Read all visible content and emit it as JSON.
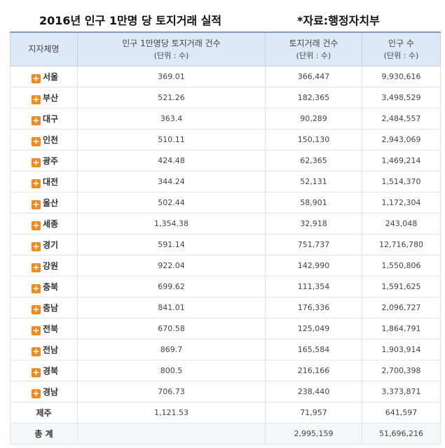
{
  "header": {
    "title": "2016년 인구 1만명 당 토지거래 실적",
    "source": "*자료:행정자치부"
  },
  "columns": {
    "region": "지자체명",
    "per_10k": "인구 1만명당 토지거래 건수",
    "per_10k_unit": "(단위 : 수)",
    "transactions": "토지거래 건수",
    "transactions_unit": "(단위 : 수)",
    "population": "인구 수",
    "population_unit": "(단위 : 수)"
  },
  "rows": [
    {
      "region": "서울",
      "per_10k": "369.01",
      "transactions": "366,447",
      "population": "9,930,616"
    },
    {
      "region": "부산",
      "per_10k": "521.26",
      "transactions": "182,365",
      "population": "3,498,529"
    },
    {
      "region": "대구",
      "per_10k": "363.4",
      "transactions": "90,289",
      "population": "2,484,557"
    },
    {
      "region": "인천",
      "per_10k": "510.11",
      "transactions": "150,130",
      "population": "2,943,069"
    },
    {
      "region": "광주",
      "per_10k": "424.48",
      "transactions": "62,365",
      "population": "1,469,214"
    },
    {
      "region": "대전",
      "per_10k": "344.24",
      "transactions": "52,131",
      "population": "1,514,370"
    },
    {
      "region": "울산",
      "per_10k": "502.44",
      "transactions": "58,901",
      "population": "1,172,304"
    },
    {
      "region": "세종",
      "per_10k": "1,354.38",
      "transactions": "32,918",
      "population": "243,048"
    },
    {
      "region": "경기",
      "per_10k": "591.14",
      "transactions": "751,737",
      "population": "12,716,780"
    },
    {
      "region": "강원",
      "per_10k": "922.04",
      "transactions": "142,990",
      "population": "1,550,806"
    },
    {
      "region": "충북",
      "per_10k": "699.62",
      "transactions": "111,354",
      "population": "1,591,625"
    },
    {
      "region": "충남",
      "per_10k": "841.01",
      "transactions": "176,336",
      "population": "2,096,727"
    },
    {
      "region": "전북",
      "per_10k": "670.58",
      "transactions": "125,049",
      "population": "1,864,791"
    },
    {
      "region": "전남",
      "per_10k": "869.7",
      "transactions": "165,584",
      "population": "1,903,914"
    },
    {
      "region": "경북",
      "per_10k": "800.5",
      "transactions": "216,166",
      "population": "2,700,398"
    },
    {
      "region": "경남",
      "per_10k": "706.73",
      "transactions": "238,440",
      "population": "3,373,871"
    },
    {
      "region": "제주",
      "per_10k": "1,121.53",
      "transactions": "71,957",
      "population": "641,597"
    }
  ],
  "total": {
    "label": "총 계",
    "per_10k": "",
    "transactions": "2,995,159",
    "population": "51,696,216"
  },
  "expand_icon": "plus-icon",
  "colors": {
    "expand_icon": "#f08a1e",
    "header_bg": "#dde9f6"
  }
}
